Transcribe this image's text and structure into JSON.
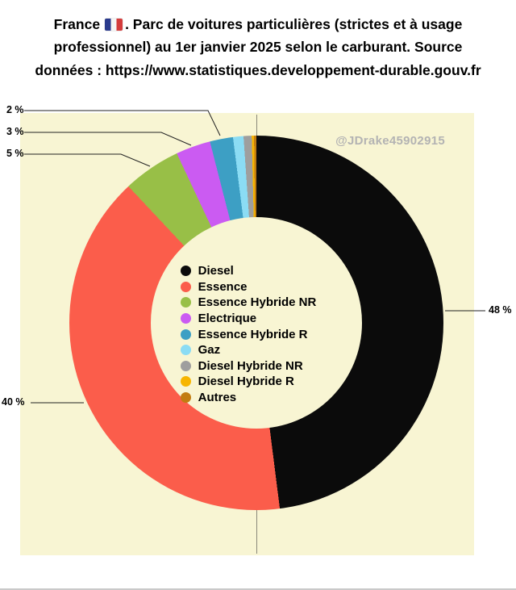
{
  "title": {
    "pre": "France",
    "rest": ". Parc de voitures particulières (strictes et à usage professionnel) au 1er janvier 2025 selon  le carburant. Source données : https://www.statistiques.developpement-durable.gouv.fr"
  },
  "watermark": "@JDrake45902915",
  "chart_data": {
    "type": "pie",
    "donut": true,
    "title": "France. Parc de voitures particulières (strictes et à usage professionnel) au 1er janvier 2025 selon le carburant. Source données : https://www.statistiques.developpement-durable.gouv.fr",
    "unit": "%",
    "start_angle_deg": 0,
    "direction": "clockwise",
    "legend_position": "center",
    "background": "#f8f5d3",
    "series": [
      {
        "label": "Diesel",
        "value": 48,
        "color": "#0b0b0b",
        "display": "48 %"
      },
      {
        "label": "Essence",
        "value": 40,
        "color": "#fb5d4b",
        "display": "40 %"
      },
      {
        "label": "Essence Hybride NR",
        "value": 5,
        "color": "#98bf47",
        "display": "5 %"
      },
      {
        "label": "Electrique",
        "value": 3,
        "color": "#cb5bf2",
        "display": "3 %"
      },
      {
        "label": "Essence Hybride R",
        "value": 2,
        "color": "#3d9fc4",
        "display": "2 %"
      },
      {
        "label": "Gaz",
        "value": 0.9,
        "color": "#8bdcf4",
        "display": ""
      },
      {
        "label": "Diesel Hybride NR",
        "value": 0.7,
        "color": "#9e9e9e",
        "display": ""
      },
      {
        "label": "Diesel Hybride R",
        "value": 0.2,
        "color": "#f7b500",
        "display": ""
      },
      {
        "label": "Autres",
        "value": 0.2,
        "color": "#c27c11",
        "display": ""
      }
    ]
  }
}
